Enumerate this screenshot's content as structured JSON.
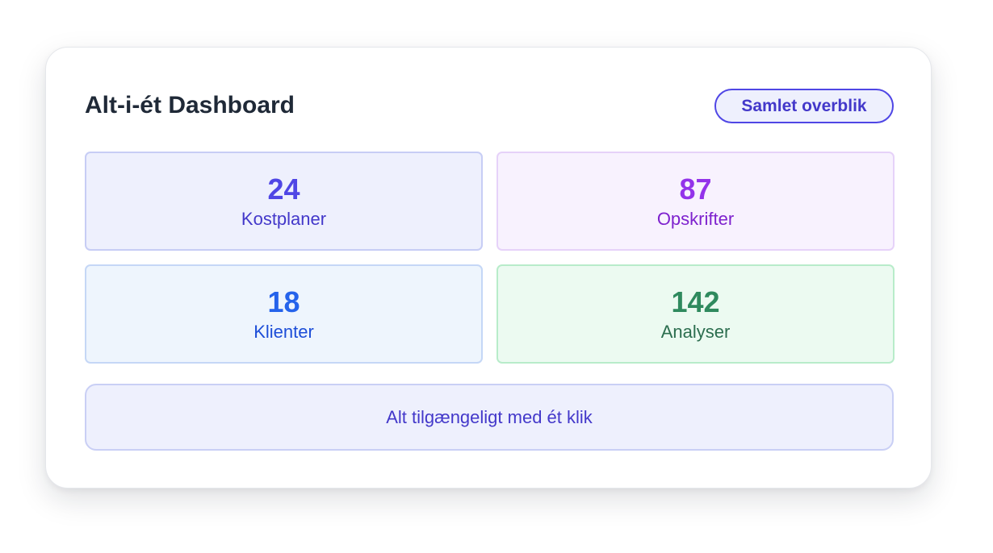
{
  "dashboard": {
    "title": "Alt-i-ét Dashboard",
    "badge_label": "Samlet overblik",
    "stats": [
      {
        "value": "24",
        "label": "Kostplaner"
      },
      {
        "value": "87",
        "label": "Opskrifter"
      },
      {
        "value": "18",
        "label": "Klienter"
      },
      {
        "value": "142",
        "label": "Analyser"
      }
    ],
    "footer_text": "Alt tilgængeligt med ét klik"
  },
  "colors": {
    "indigo": "#4f46e5",
    "purple": "#9333ea",
    "blue": "#2563eb",
    "green": "#2f8a5e",
    "title_text": "#1f2937"
  }
}
